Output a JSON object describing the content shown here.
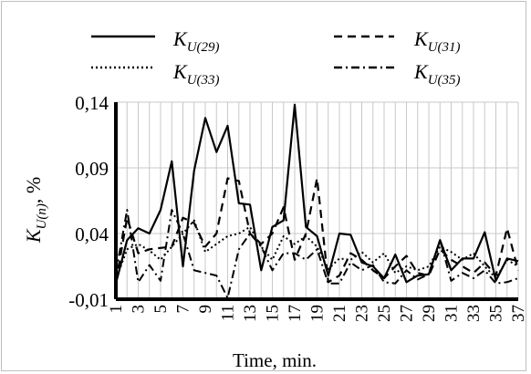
{
  "chart_data": {
    "type": "line",
    "title": "",
    "xlabel": "Time, min.",
    "ylabel": "K",
    "ylabel_sub": "U(n)",
    "ylabel_suffix": ", %",
    "ylim": [
      -0.01,
      0.14
    ],
    "yticks": [
      "0,14",
      "0,09",
      "0,04",
      "-0,01"
    ],
    "ytick_values": [
      0.14,
      0.09,
      0.04,
      -0.01
    ],
    "xticks": [
      "1",
      "3",
      "5",
      "7",
      "9",
      "11",
      "13",
      "15",
      "17",
      "19",
      "21",
      "23",
      "25",
      "27",
      "29",
      "31",
      "33",
      "35",
      "37"
    ],
    "x": [
      1,
      2,
      3,
      4,
      5,
      6,
      7,
      8,
      9,
      10,
      11,
      12,
      13,
      14,
      15,
      16,
      17,
      18,
      19,
      20,
      21,
      22,
      23,
      24,
      25,
      26,
      27,
      28,
      29,
      30,
      31,
      32,
      33,
      34,
      35,
      36,
      37
    ],
    "grid": true,
    "legend_position": "top",
    "series": [
      {
        "name": "K_U(29)",
        "name_main": "K",
        "name_sub": "U(29)",
        "style": "solid",
        "values": [
          0.002,
          0.035,
          0.044,
          0.04,
          0.058,
          0.095,
          0.015,
          0.088,
          0.128,
          0.102,
          0.122,
          0.063,
          0.062,
          0.012,
          0.045,
          0.05,
          0.138,
          0.045,
          0.038,
          0.008,
          0.04,
          0.039,
          0.018,
          0.015,
          0.006,
          0.024,
          0.003,
          0.008,
          0.009,
          0.035,
          0.012,
          0.021,
          0.021,
          0.041,
          0.004,
          0.021,
          0.019
        ]
      },
      {
        "name": "K_U(31)",
        "name_main": "K",
        "name_sub": "U(31)",
        "style": "dashed",
        "values": [
          0.003,
          0.052,
          0.025,
          0.028,
          0.029,
          0.03,
          0.052,
          0.048,
          0.03,
          0.04,
          0.082,
          0.08,
          0.04,
          0.032,
          0.04,
          0.06,
          0.02,
          0.04,
          0.082,
          0.003,
          0.008,
          0.025,
          0.02,
          0.012,
          0.006,
          0.015,
          0.023,
          0.01,
          0.008,
          0.028,
          0.02,
          0.015,
          0.01,
          0.018,
          0.008,
          0.044,
          0.012
        ]
      },
      {
        "name": "K_U(33)",
        "name_main": "K",
        "name_sub": "U(33)",
        "style": "dotted",
        "values": [
          0.005,
          0.028,
          0.032,
          0.027,
          0.02,
          0.03,
          0.04,
          0.05,
          0.026,
          0.032,
          0.038,
          0.04,
          0.045,
          0.03,
          0.02,
          0.038,
          0.032,
          0.038,
          0.03,
          0.013,
          0.021,
          0.02,
          0.026,
          0.018,
          0.025,
          0.01,
          0.015,
          0.012,
          0.015,
          0.03,
          0.026,
          0.02,
          0.025,
          0.015,
          0.006,
          0.02,
          0.015
        ]
      },
      {
        "name": "K_U(35)",
        "name_main": "K",
        "name_sub": "U(35)",
        "style": "dashdot",
        "values": [
          0.01,
          0.058,
          0.003,
          0.016,
          0.004,
          0.058,
          0.04,
          0.012,
          0.01,
          0.008,
          -0.009,
          0.028,
          0.04,
          0.03,
          0.012,
          0.025,
          0.025,
          0.02,
          0.028,
          0.002,
          0.002,
          0.018,
          0.012,
          0.016,
          0.003,
          0.002,
          0.012,
          0.005,
          0.009,
          0.035,
          0.004,
          0.01,
          0.006,
          0.012,
          0.002,
          0.003,
          0.006
        ]
      }
    ]
  }
}
